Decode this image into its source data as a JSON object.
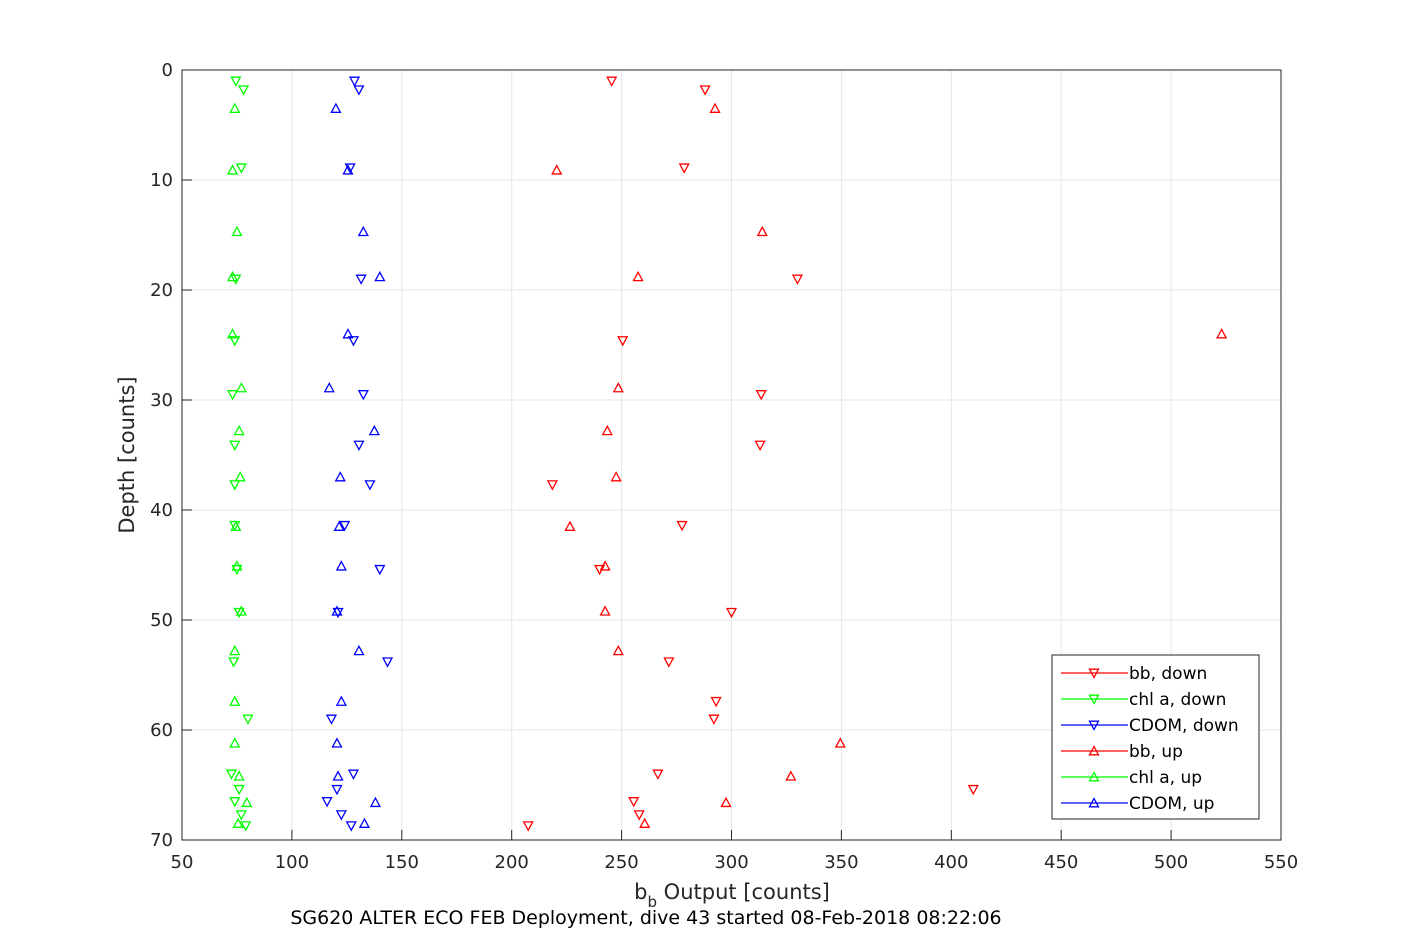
{
  "chart_data": {
    "type": "scatter",
    "title": "",
    "caption": "SG620 ALTER ECO FEB Deployment, dive 43 started 08-Feb-2018 08:22:06",
    "xlabel_main": "b",
    "xlabel_sub": "b",
    "xlabel_rest": " Output [counts]",
    "ylabel": "Depth [counts]",
    "xlim": [
      50,
      550
    ],
    "ylim": [
      0,
      70
    ],
    "y_reversed": true,
    "grid": true,
    "legend_position": "bottom-right",
    "xticks": [
      "50",
      "100",
      "150",
      "200",
      "250",
      "300",
      "350",
      "400",
      "450",
      "500",
      "550"
    ],
    "yticks": [
      "0",
      "10",
      "20",
      "30",
      "40",
      "50",
      "60",
      "70"
    ],
    "series": [
      {
        "name": "bb, down",
        "color": "#ff0000",
        "marker": "triangle-down",
        "points": [
          [
            245.5,
            1.0
          ],
          [
            288,
            1.8
          ],
          [
            278.5,
            8.9
          ],
          [
            330,
            19.0
          ],
          [
            250.5,
            24.6
          ],
          [
            313.5,
            29.5
          ],
          [
            313,
            34.1
          ],
          [
            218.5,
            37.7
          ],
          [
            277.5,
            41.4
          ],
          [
            240,
            45.4
          ],
          [
            300,
            49.3
          ],
          [
            271.5,
            53.8
          ],
          [
            293,
            57.4
          ],
          [
            292,
            59.0
          ],
          [
            266.5,
            64.0
          ],
          [
            410,
            65.4
          ],
          [
            255.5,
            66.5
          ],
          [
            258,
            67.7
          ],
          [
            207.5,
            68.7
          ]
        ]
      },
      {
        "name": "chl a, down",
        "color": "#00ff00",
        "marker": "triangle-down",
        "points": [
          [
            74.5,
            1.0
          ],
          [
            78,
            1.8
          ],
          [
            77,
            8.9
          ],
          [
            74.5,
            19.0
          ],
          [
            74,
            24.6
          ],
          [
            73,
            29.5
          ],
          [
            74,
            34.1
          ],
          [
            74,
            37.7
          ],
          [
            74,
            41.4
          ],
          [
            75,
            45.4
          ],
          [
            76,
            49.3
          ],
          [
            73.5,
            53.8
          ],
          [
            80,
            59.0
          ],
          [
            72.5,
            64.0
          ],
          [
            76,
            65.4
          ],
          [
            74,
            66.5
          ],
          [
            77,
            67.7
          ],
          [
            79,
            68.7
          ]
        ]
      },
      {
        "name": "CDOM, down",
        "color": "#0000ff",
        "marker": "triangle-down",
        "points": [
          [
            128.5,
            1.0
          ],
          [
            130.5,
            1.8
          ],
          [
            126.5,
            8.9
          ],
          [
            131.5,
            19.0
          ],
          [
            128,
            24.6
          ],
          [
            132.5,
            29.5
          ],
          [
            130.5,
            34.1
          ],
          [
            135.5,
            37.7
          ],
          [
            124,
            41.4
          ],
          [
            140,
            45.4
          ],
          [
            121,
            49.3
          ],
          [
            143.5,
            53.8
          ],
          [
            118,
            59.0
          ],
          [
            128,
            64.0
          ],
          [
            120.5,
            65.4
          ],
          [
            116,
            66.5
          ],
          [
            122.5,
            67.7
          ],
          [
            127,
            68.7
          ]
        ]
      },
      {
        "name": "bb, up",
        "color": "#ff0000",
        "marker": "triangle-up",
        "points": [
          [
            292.5,
            3.5
          ],
          [
            220.5,
            9.1
          ],
          [
            314,
            14.7
          ],
          [
            257.5,
            18.8
          ],
          [
            523,
            24.0
          ],
          [
            248.5,
            28.9
          ],
          [
            243.5,
            32.8
          ],
          [
            247.5,
            37.0
          ],
          [
            226.5,
            41.5
          ],
          [
            242.5,
            45.1
          ],
          [
            242.5,
            49.2
          ],
          [
            248.5,
            52.8
          ],
          [
            349.5,
            61.2
          ],
          [
            327,
            64.2
          ],
          [
            297.5,
            66.6
          ],
          [
            260.5,
            68.5
          ]
        ]
      },
      {
        "name": "chl a, up",
        "color": "#00ff00",
        "marker": "triangle-up",
        "points": [
          [
            74,
            3.5
          ],
          [
            73,
            9.1
          ],
          [
            75,
            14.7
          ],
          [
            73,
            18.8
          ],
          [
            73,
            24.0
          ],
          [
            77,
            28.9
          ],
          [
            76,
            32.8
          ],
          [
            76.5,
            37.0
          ],
          [
            74.5,
            41.5
          ],
          [
            75,
            45.1
          ],
          [
            77,
            49.2
          ],
          [
            74,
            52.8
          ],
          [
            74,
            57.4
          ],
          [
            74,
            61.2
          ],
          [
            76,
            64.2
          ],
          [
            79.5,
            66.6
          ],
          [
            75.5,
            68.5
          ]
        ]
      },
      {
        "name": "CDOM, up",
        "color": "#0000ff",
        "marker": "triangle-up",
        "points": [
          [
            120,
            3.5
          ],
          [
            125.5,
            9.1
          ],
          [
            132.5,
            14.7
          ],
          [
            140,
            18.8
          ],
          [
            125.5,
            24.0
          ],
          [
            117,
            28.9
          ],
          [
            137.5,
            32.8
          ],
          [
            122,
            37.0
          ],
          [
            121.5,
            41.5
          ],
          [
            122.5,
            45.1
          ],
          [
            120.5,
            49.2
          ],
          [
            130.5,
            52.8
          ],
          [
            122.5,
            57.4
          ],
          [
            120.5,
            61.2
          ],
          [
            121,
            64.2
          ],
          [
            138,
            66.6
          ],
          [
            133,
            68.5
          ]
        ]
      }
    ]
  }
}
